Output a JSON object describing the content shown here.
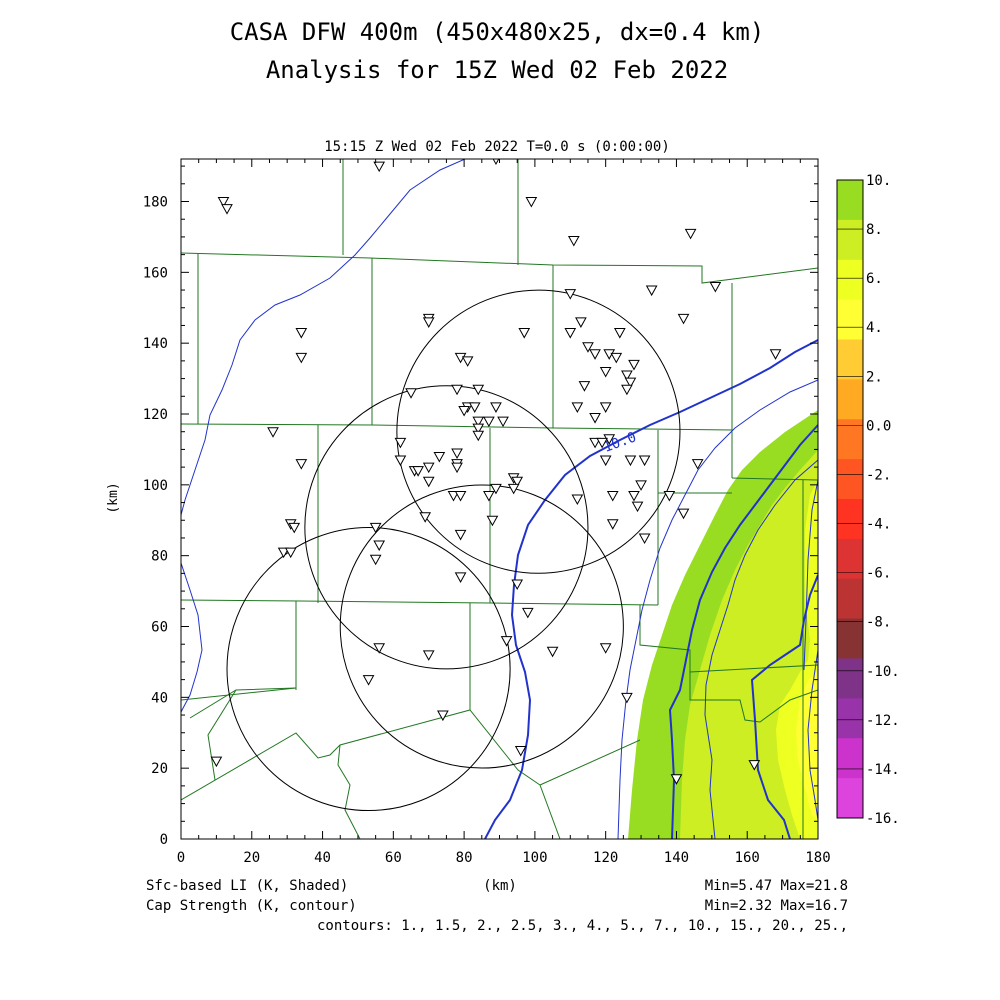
{
  "title": {
    "line1": "CASA DFW 400m (450x480x25, dx=0.4 km)",
    "line2": "Analysis for 15Z Wed 02 Feb 2022"
  },
  "subtitle": "15:15 Z Wed 02 Feb 2022   T=0.0 s (0:00:00)",
  "axes": {
    "xlabel": "(km)",
    "ylabel": "(km)",
    "xlim": [
      0,
      180
    ],
    "ylim": [
      0,
      192
    ],
    "xticks": [
      "0",
      "20",
      "40",
      "60",
      "80",
      "100",
      "120",
      "140",
      "160",
      "180"
    ],
    "yticks": [
      "0",
      "20",
      "40",
      "60",
      "80",
      "100",
      "120",
      "140",
      "160",
      "180"
    ]
  },
  "colorbar": {
    "labels": [
      "10.",
      "8.",
      "6.",
      "4.",
      "2.",
      "0.0",
      "-2.",
      "-4.",
      "-6.",
      "-8.",
      "-10.",
      "-12.",
      "-14.",
      "-16."
    ],
    "colors": [
      "#99dd22",
      "#ccee22",
      "#eeff22",
      "#ffff33",
      "#ffcc33",
      "#ffaa22",
      "#ff7722",
      "#ff5522",
      "#ff3322",
      "#dd3333",
      "#bb3333",
      "#883333",
      "#7f3388",
      "#9933aa",
      "#cc33cc",
      "#dd44dd"
    ]
  },
  "footer": {
    "field1": "Sfc-based LI (K, Shaded)",
    "field2": "Cap Strength (K, contour)",
    "xunit": "(km)",
    "range1": "Min=5.47 Max=21.8",
    "range2": "Min=2.32 Max=16.7",
    "contours": "contours: 1., 1.5, 2., 2.5, 3., 4., 5., 7., 10., 15., 20., 25.,"
  },
  "contour_label": "10.0",
  "colors": {
    "county_lines": "#227722",
    "cap_contour": "#2233cc",
    "radar_rings": "#000000"
  },
  "radar_rings": [
    {
      "cx": 101,
      "cy": 115,
      "r": 40
    },
    {
      "cx": 75,
      "cy": 88,
      "r": 40
    },
    {
      "cx": 85,
      "cy": 60,
      "r": 40
    },
    {
      "cx": 53,
      "cy": 48,
      "r": 40
    }
  ],
  "stations": [
    [
      56,
      190
    ],
    [
      89,
      192
    ],
    [
      12,
      180
    ],
    [
      13,
      178
    ],
    [
      99,
      180
    ],
    [
      111,
      169
    ],
    [
      144,
      171
    ],
    [
      151,
      156
    ],
    [
      133,
      155
    ],
    [
      34,
      143
    ],
    [
      34,
      136
    ],
    [
      70,
      147
    ],
    [
      70,
      146
    ],
    [
      97,
      143
    ],
    [
      110,
      154
    ],
    [
      113,
      146
    ],
    [
      110,
      143
    ],
    [
      115,
      139
    ],
    [
      117,
      137
    ],
    [
      121,
      137
    ],
    [
      123,
      136
    ],
    [
      120,
      132
    ],
    [
      126,
      131
    ],
    [
      127,
      129
    ],
    [
      126,
      127
    ],
    [
      128,
      134
    ],
    [
      142,
      147
    ],
    [
      124,
      143
    ],
    [
      79,
      136
    ],
    [
      81,
      135
    ],
    [
      65,
      126
    ],
    [
      78,
      127
    ],
    [
      84,
      127
    ],
    [
      81,
      122
    ],
    [
      83,
      122
    ],
    [
      80,
      121
    ],
    [
      89,
      122
    ],
    [
      87,
      118
    ],
    [
      84,
      118
    ],
    [
      84,
      116
    ],
    [
      84,
      114
    ],
    [
      91,
      118
    ],
    [
      114,
      128
    ],
    [
      112,
      122
    ],
    [
      117,
      119
    ],
    [
      120,
      122
    ],
    [
      117,
      112
    ],
    [
      62,
      112
    ],
    [
      73,
      108
    ],
    [
      78,
      109
    ],
    [
      78,
      106
    ],
    [
      78,
      105
    ],
    [
      62,
      107
    ],
    [
      66,
      104
    ],
    [
      67,
      104
    ],
    [
      70,
      105
    ],
    [
      70,
      101
    ],
    [
      34,
      106
    ],
    [
      26,
      115
    ],
    [
      121,
      113
    ],
    [
      119,
      112
    ],
    [
      120,
      107
    ],
    [
      127,
      107
    ],
    [
      131,
      107
    ],
    [
      122,
      97
    ],
    [
      128,
      97
    ],
    [
      129,
      94
    ],
    [
      138,
      97
    ],
    [
      146,
      106
    ],
    [
      142,
      92
    ],
    [
      130,
      100
    ],
    [
      94,
      102
    ],
    [
      95,
      101
    ],
    [
      94,
      99
    ],
    [
      89,
      99
    ],
    [
      87,
      97
    ],
    [
      77,
      97
    ],
    [
      79,
      97
    ],
    [
      69,
      91
    ],
    [
      88,
      90
    ],
    [
      79,
      86
    ],
    [
      55,
      88
    ],
    [
      31,
      89
    ],
    [
      32,
      88
    ],
    [
      29,
      81
    ],
    [
      31,
      81
    ],
    [
      56,
      83
    ],
    [
      55,
      79
    ],
    [
      122,
      89
    ],
    [
      112,
      96
    ],
    [
      131,
      85
    ],
    [
      79,
      74
    ],
    [
      95,
      72
    ],
    [
      98,
      64
    ],
    [
      92,
      56
    ],
    [
      56,
      54
    ],
    [
      70,
      52
    ],
    [
      105,
      53
    ],
    [
      120,
      54
    ],
    [
      53,
      45
    ],
    [
      74,
      35
    ],
    [
      96,
      25
    ],
    [
      10,
      22
    ],
    [
      126,
      40
    ],
    [
      140,
      17
    ],
    [
      162,
      21
    ],
    [
      168,
      137
    ]
  ]
}
